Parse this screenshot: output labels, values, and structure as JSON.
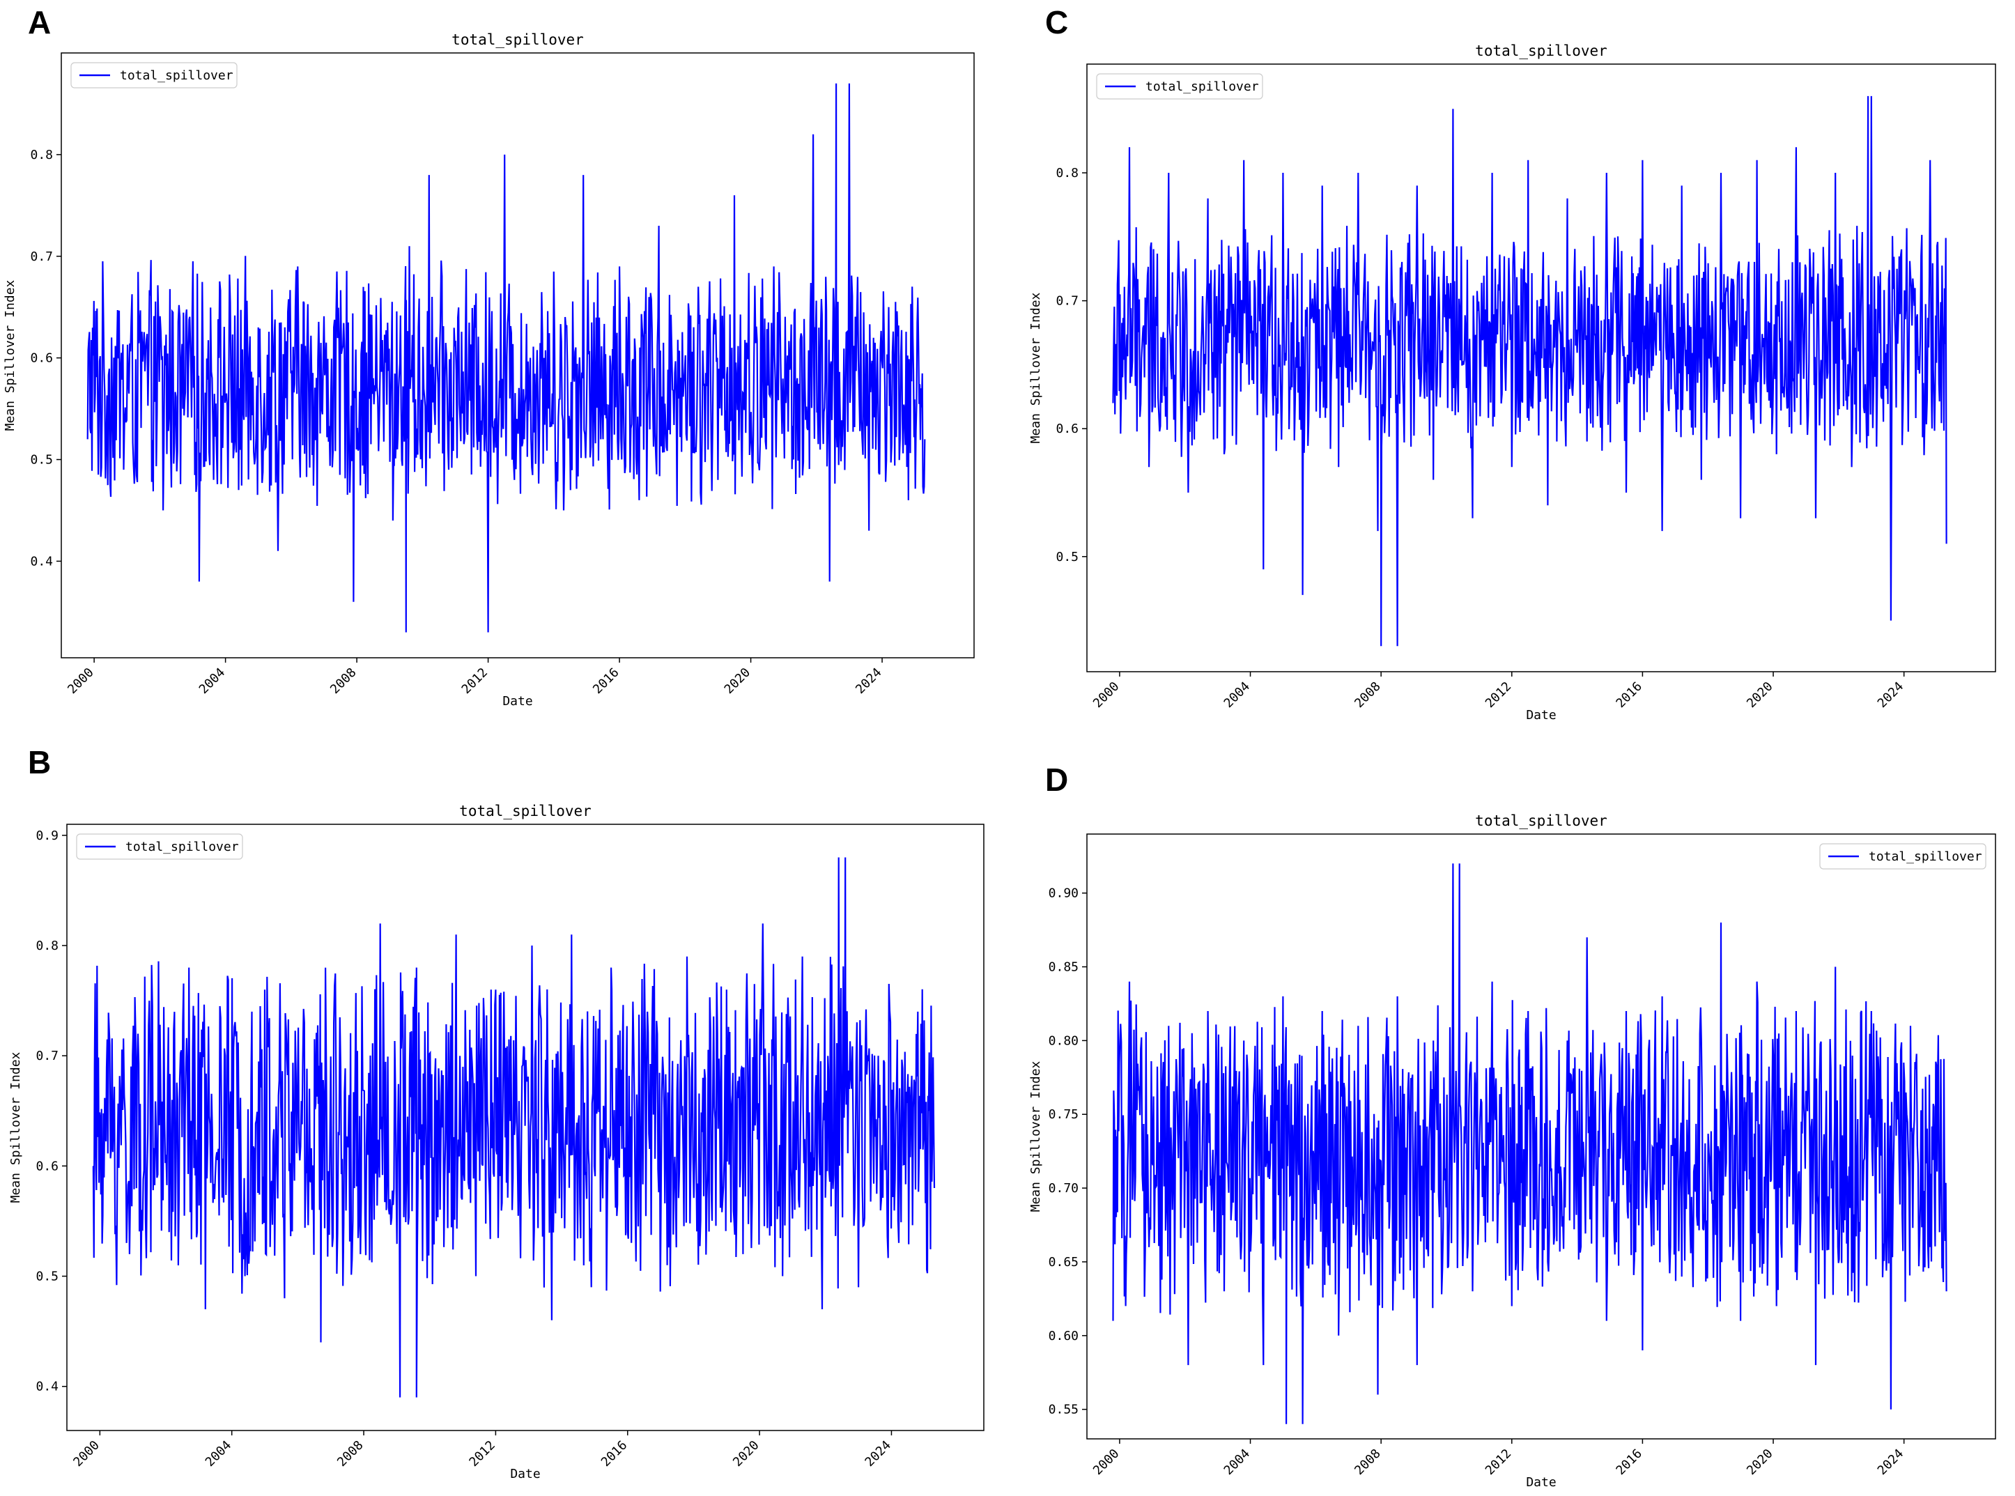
{
  "figure": {
    "panels": [
      {
        "letter": "A"
      },
      {
        "letter": "B"
      },
      {
        "letter": "C"
      },
      {
        "letter": "D"
      }
    ]
  },
  "chart_data": [
    {
      "panel": "A",
      "type": "line",
      "title": "total_spillover",
      "xlabel": "Date",
      "ylabel": "Mean Spillover Index",
      "xlim": [
        1999.0,
        2026.8
      ],
      "ylim": [
        0.305,
        0.9
      ],
      "yticks": [
        0.4,
        0.5,
        0.6,
        0.7,
        0.8
      ],
      "ytick_labels": [
        "0.4",
        "0.5",
        "0.6",
        "0.7",
        "0.8"
      ],
      "xticks": [
        2000,
        2004,
        2008,
        2012,
        2016,
        2020,
        2024
      ],
      "xtick_labels": [
        "2000",
        "2004",
        "2008",
        "2012",
        "2016",
        "2020",
        "2024"
      ],
      "legend": "upper-left",
      "grid": false,
      "color": "#0000ff",
      "series": [
        {
          "name": "total_spillover",
          "x": [
            1999.8,
            2000.3,
            2000.9,
            2001.5,
            2002.1,
            2002.7,
            2003.2,
            2003.8,
            2004.4,
            2005.0,
            2005.6,
            2006.2,
            2006.7,
            2007.3,
            2007.9,
            2008.5,
            2009.1,
            2009.6,
            2010.2,
            2010.8,
            2011.4,
            2012.0,
            2012.5,
            2013.1,
            2013.7,
            2014.3,
            2014.9,
            2015.5,
            2016.0,
            2016.6,
            2017.2,
            2017.8,
            2018.4,
            2019.0,
            2019.5,
            2020.1,
            2020.7,
            2021.3,
            2021.9,
            2022.4,
            2023.0,
            2023.6,
            2024.2,
            2024.8,
            2025.3
          ],
          "y": [
            0.52,
            0.59,
            0.49,
            0.61,
            0.45,
            0.55,
            0.38,
            0.6,
            0.47,
            0.63,
            0.41,
            0.69,
            0.52,
            0.63,
            0.36,
            0.58,
            0.44,
            0.71,
            0.78,
            0.49,
            0.58,
            0.33,
            0.8,
            0.52,
            0.6,
            0.45,
            0.78,
            0.52,
            0.69,
            0.46,
            0.73,
            0.56,
            0.67,
            0.48,
            0.76,
            0.61,
            0.69,
            0.5,
            0.82,
            0.38,
            0.87,
            0.43,
            0.65,
            0.46,
            0.52
          ],
          "extremes": {
            "max": {
              "x": 2022.6,
              "y": 0.87
            },
            "min": {
              "x": 2009.5,
              "y": 0.33
            }
          }
        }
      ]
    },
    {
      "panel": "B",
      "type": "line",
      "title": "total_spillover",
      "xlabel": "Date",
      "ylabel": "Mean Spillover Index",
      "xlim": [
        1999.0,
        2026.8
      ],
      "ylim": [
        0.36,
        0.91
      ],
      "yticks": [
        0.4,
        0.5,
        0.6,
        0.7,
        0.8,
        0.9
      ],
      "ytick_labels": [
        "0.4",
        "0.5",
        "0.6",
        "0.7",
        "0.8",
        "0.9"
      ],
      "xticks": [
        2000,
        2004,
        2008,
        2012,
        2016,
        2020,
        2024
      ],
      "xtick_labels": [
        "2000",
        "2004",
        "2008",
        "2012",
        "2016",
        "2020",
        "2024"
      ],
      "legend": "upper-left",
      "grid": false,
      "color": "#0000ff",
      "series": [
        {
          "name": "total_spillover",
          "x": [
            1999.8,
            2000.3,
            2000.9,
            2001.5,
            2002.1,
            2002.7,
            2003.2,
            2003.8,
            2004.4,
            2005.0,
            2005.6,
            2006.2,
            2006.7,
            2007.3,
            2007.9,
            2008.5,
            2009.1,
            2009.6,
            2010.2,
            2010.8,
            2011.4,
            2012.0,
            2012.5,
            2013.1,
            2013.7,
            2014.3,
            2014.9,
            2015.5,
            2016.0,
            2016.6,
            2017.2,
            2017.8,
            2018.4,
            2019.0,
            2019.5,
            2020.1,
            2020.7,
            2021.3,
            2021.9,
            2022.4,
            2023.0,
            2023.6,
            2024.2,
            2024.8,
            2025.3
          ],
          "y": [
            0.6,
            0.71,
            0.52,
            0.75,
            0.54,
            0.78,
            0.47,
            0.7,
            0.5,
            0.76,
            0.48,
            0.73,
            0.44,
            0.69,
            0.52,
            0.82,
            0.39,
            0.78,
            0.55,
            0.81,
            0.5,
            0.76,
            0.56,
            0.8,
            0.46,
            0.81,
            0.49,
            0.78,
            0.54,
            0.74,
            0.51,
            0.79,
            0.57,
            0.76,
            0.52,
            0.82,
            0.5,
            0.79,
            0.47,
            0.88,
            0.49,
            0.7,
            0.55,
            0.74,
            0.58
          ],
          "extremes": {
            "max": {
              "x": 2022.6,
              "y": 0.88
            },
            "min": {
              "x": 2009.6,
              "y": 0.39
            }
          }
        }
      ]
    },
    {
      "panel": "C",
      "type": "line",
      "title": "total_spillover",
      "xlabel": "Date",
      "ylabel": "Mean Spillover Index",
      "xlim": [
        1999.0,
        2026.8
      ],
      "ylim": [
        0.41,
        0.885
      ],
      "yticks": [
        0.5,
        0.6,
        0.7,
        0.8
      ],
      "ytick_labels": [
        "0.5",
        "0.6",
        "0.7",
        "0.8"
      ],
      "xticks": [
        2000,
        2004,
        2008,
        2012,
        2016,
        2020,
        2024
      ],
      "xtick_labels": [
        "2000",
        "2004",
        "2008",
        "2012",
        "2016",
        "2020",
        "2024"
      ],
      "legend": "upper-left",
      "grid": false,
      "color": "#0000ff",
      "series": [
        {
          "name": "total_spillover",
          "x": [
            1999.8,
            2000.3,
            2000.9,
            2001.5,
            2002.1,
            2002.7,
            2003.2,
            2003.8,
            2004.4,
            2005.0,
            2005.6,
            2006.2,
            2006.7,
            2007.3,
            2007.9,
            2008.5,
            2009.1,
            2009.6,
            2010.2,
            2010.8,
            2011.4,
            2012.0,
            2012.5,
            2013.1,
            2013.7,
            2014.3,
            2014.9,
            2015.5,
            2016.0,
            2016.6,
            2017.2,
            2017.8,
            2018.4,
            2019.0,
            2019.5,
            2020.1,
            2020.7,
            2021.3,
            2021.9,
            2022.4,
            2023.0,
            2023.6,
            2024.2,
            2024.8,
            2025.3
          ],
          "y": [
            0.62,
            0.82,
            0.57,
            0.8,
            0.55,
            0.78,
            0.58,
            0.81,
            0.49,
            0.8,
            0.47,
            0.79,
            0.57,
            0.8,
            0.52,
            0.43,
            0.79,
            0.56,
            0.85,
            0.53,
            0.8,
            0.57,
            0.81,
            0.54,
            0.78,
            0.59,
            0.8,
            0.55,
            0.81,
            0.52,
            0.79,
            0.56,
            0.8,
            0.53,
            0.81,
            0.58,
            0.82,
            0.53,
            0.8,
            0.57,
            0.86,
            0.45,
            0.72,
            0.81,
            0.51
          ],
          "extremes": {
            "max": {
              "x": 2022.9,
              "y": 0.86
            },
            "min": {
              "x": 2008.0,
              "y": 0.43
            }
          }
        }
      ]
    },
    {
      "panel": "D",
      "type": "line",
      "title": "total_spillover",
      "xlabel": "Date",
      "ylabel": "Mean Spillover Index",
      "xlim": [
        1999.0,
        2026.8
      ],
      "ylim": [
        0.53,
        0.94
      ],
      "yticks": [
        0.55,
        0.6,
        0.65,
        0.7,
        0.75,
        0.8,
        0.85,
        0.9
      ],
      "ytick_labels": [
        "0.55",
        "0.60",
        "0.65",
        "0.70",
        "0.75",
        "0.80",
        "0.85",
        "0.90"
      ],
      "xticks": [
        2000,
        2004,
        2008,
        2012,
        2016,
        2020,
        2024
      ],
      "xtick_labels": [
        "2000",
        "2004",
        "2008",
        "2012",
        "2016",
        "2020",
        "2024"
      ],
      "legend": "upper-right",
      "grid": false,
      "color": "#0000ff",
      "series": [
        {
          "name": "total_spillover",
          "x": [
            1999.8,
            2000.3,
            2000.9,
            2001.5,
            2002.1,
            2002.7,
            2003.2,
            2003.8,
            2004.4,
            2005.0,
            2005.6,
            2006.2,
            2006.7,
            2007.3,
            2007.9,
            2008.5,
            2009.1,
            2009.6,
            2010.2,
            2010.8,
            2011.4,
            2012.0,
            2012.5,
            2013.1,
            2013.7,
            2014.3,
            2014.9,
            2015.5,
            2016.0,
            2016.6,
            2017.2,
            2017.8,
            2018.4,
            2019.0,
            2019.5,
            2020.1,
            2020.7,
            2021.3,
            2021.9,
            2022.4,
            2023.0,
            2023.6,
            2024.2,
            2024.8,
            2025.3
          ],
          "y": [
            0.61,
            0.84,
            0.66,
            0.81,
            0.58,
            0.82,
            0.63,
            0.8,
            0.58,
            0.83,
            0.54,
            0.82,
            0.6,
            0.81,
            0.56,
            0.83,
            0.58,
            0.8,
            0.92,
            0.63,
            0.84,
            0.62,
            0.82,
            0.65,
            0.8,
            0.87,
            0.61,
            0.82,
            0.59,
            0.83,
            0.64,
            0.8,
            0.88,
            0.61,
            0.84,
            0.62,
            0.82,
            0.58,
            0.85,
            0.63,
            0.82,
            0.55,
            0.81,
            0.66,
            0.63
          ],
          "extremes": {
            "max": {
              "x": 2010.4,
              "y": 0.92
            },
            "min": {
              "x": 2005.1,
              "y": 0.54
            }
          }
        }
      ]
    }
  ]
}
